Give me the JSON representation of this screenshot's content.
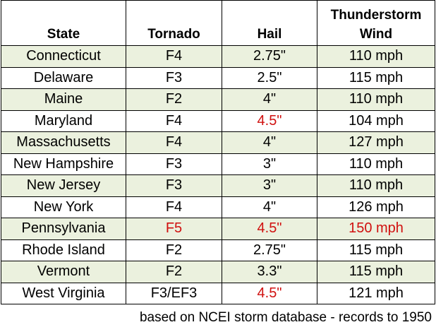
{
  "table": {
    "headers": {
      "state": "State",
      "tornado": "Tornado",
      "hail": "Hail",
      "wind_line1": "Thunderstorm",
      "wind_line2": "Wind"
    },
    "rows": [
      {
        "state": "Connecticut",
        "tornado": "F4",
        "hail": "2.75\"",
        "wind": "110 mph",
        "tornado_red": false,
        "hail_red": false,
        "wind_red": false
      },
      {
        "state": "Delaware",
        "tornado": "F3",
        "hail": "2.5\"",
        "wind": "115 mph",
        "tornado_red": false,
        "hail_red": false,
        "wind_red": false
      },
      {
        "state": "Maine",
        "tornado": "F2",
        "hail": "4\"",
        "wind": "110 mph",
        "tornado_red": false,
        "hail_red": false,
        "wind_red": false
      },
      {
        "state": "Maryland",
        "tornado": "F4",
        "hail": "4.5\"",
        "wind": "104 mph",
        "tornado_red": false,
        "hail_red": true,
        "wind_red": false
      },
      {
        "state": "Massachusetts",
        "tornado": "F4",
        "hail": "4\"",
        "wind": "127 mph",
        "tornado_red": false,
        "hail_red": false,
        "wind_red": false
      },
      {
        "state": "New Hampshire",
        "tornado": "F3",
        "hail": "3\"",
        "wind": "110 mph",
        "tornado_red": false,
        "hail_red": false,
        "wind_red": false
      },
      {
        "state": "New Jersey",
        "tornado": "F3",
        "hail": "3\"",
        "wind": "110 mph",
        "tornado_red": false,
        "hail_red": false,
        "wind_red": false
      },
      {
        "state": "New York",
        "tornado": "F4",
        "hail": "4\"",
        "wind": "126 mph",
        "tornado_red": false,
        "hail_red": false,
        "wind_red": false
      },
      {
        "state": "Pennsylvania",
        "tornado": "F5",
        "hail": "4.5\"",
        "wind": "150 mph",
        "tornado_red": true,
        "hail_red": true,
        "wind_red": true
      },
      {
        "state": "Rhode Island",
        "tornado": "F2",
        "hail": "2.75\"",
        "wind": "115 mph",
        "tornado_red": false,
        "hail_red": false,
        "wind_red": false
      },
      {
        "state": "Vermont",
        "tornado": "F2",
        "hail": "3.3\"",
        "wind": "115 mph",
        "tornado_red": false,
        "hail_red": false,
        "wind_red": false
      },
      {
        "state": "West Virginia",
        "tornado": "F3/EF3",
        "hail": "4.5\"",
        "wind": "121 mph",
        "tornado_red": false,
        "hail_red": true,
        "wind_red": false
      }
    ]
  },
  "footnote": "based on NCEI storm database - records to 1950",
  "colors": {
    "shaded_row": "#ebf1de",
    "record_red": "#d0100f"
  }
}
